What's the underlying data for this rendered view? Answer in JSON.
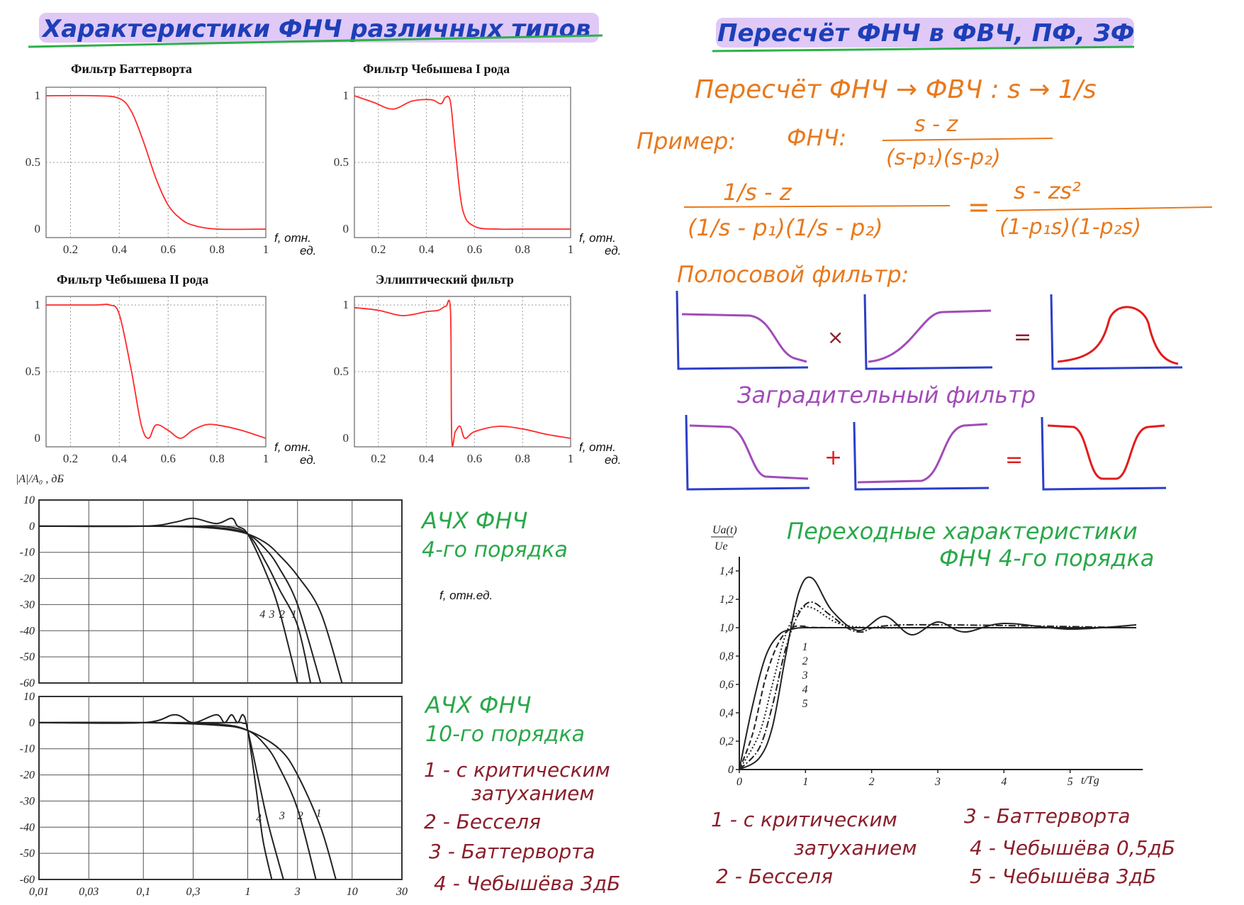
{
  "headers": {
    "left": "Характеристики ФНЧ различных типов",
    "right": "Пересчёт ФНЧ в ФВЧ, ПФ, ЗФ"
  },
  "small_plots": {
    "tick_labels_x": [
      "0.2",
      "0.4",
      "0.6",
      "0.8",
      "1"
    ],
    "tick_labels_y": [
      "1",
      "0.5",
      "0"
    ],
    "xlabel_line1": "f, отн.",
    "xlabel_line2": "ед.",
    "titles": [
      "Фильтр Баттерворта",
      "Фильтр Чебышева I рода",
      "Фильтр Чебышева II рода",
      "Эллиптический фильтр"
    ]
  },
  "afc": {
    "ylabel": "|A|/A₀ , дБ",
    "y_ticks": [
      "10",
      "0",
      "-10",
      "-20",
      "-30",
      "-40",
      "-50",
      "-60"
    ],
    "x_ticks": [
      "0,01",
      "0,03",
      "0,1",
      "0,3",
      "1",
      "3",
      "10",
      "30"
    ],
    "xlabel": "f, отн.ед.",
    "curve_labels": [
      "1",
      "2",
      "3",
      "4"
    ],
    "caption4_line1": "АЧХ ФНЧ",
    "caption4_line2": "4-го порядка",
    "caption10_line1": "АЧХ ФНЧ",
    "caption10_line2": "10-го порядка"
  },
  "legend_left": [
    "1 - с критическим",
    "затуханием",
    "2 - Бесселя",
    "3 - Баттерворта",
    "4 - Чебышёва 3дБ"
  ],
  "conversion": {
    "line1": "Пересчёт ФНЧ → ФВЧ :  s → 1/s",
    "example_label": "Пример:",
    "fnch_label": "ФНЧ:",
    "frac1_num": "s - z",
    "frac1_den": "(s-p₁)(s-p₂)",
    "frac2_num": "1/s - z",
    "frac2_den": "(1/s - p₁)(1/s - p₂)",
    "equals": "=",
    "frac3_num": "s - zs²",
    "frac3_den": "(1-p₁s)(1-p₂s)",
    "bandpass_label": "Полосовой фильтр:",
    "times": "×",
    "bandstop_label": "Заградительный фильтр",
    "plus": "+"
  },
  "transient": {
    "title_line1": "Переходные характеристики",
    "title_line2": "ФНЧ 4-го порядка",
    "ylabel_top": "Uа(t)",
    "ylabel_bottom": "Ue",
    "y_ticks": [
      "1,4",
      "1,2",
      "1,0",
      "0,8",
      "0,6",
      "0,4",
      "0,2",
      "0"
    ],
    "x_ticks": [
      "0",
      "1",
      "2",
      "3",
      "4",
      "5"
    ],
    "xlabel": "t/Tg",
    "curve_labels": [
      "1",
      "2",
      "3",
      "4",
      "5"
    ],
    "legend": [
      "1 - с критическим",
      "затуханием",
      "2 - Бесселя",
      "3 - Баттерворта",
      "4 - Чебышёва 0,5дБ",
      "5 - Чебышёва 3дБ"
    ]
  },
  "colors": {
    "red_curve": "#ff2a2a",
    "header_ink": "#1d3fb8",
    "header_highlight": "#c79cf0",
    "underline_green": "#2db04a",
    "orange_ink": "#e8791d",
    "green_ink": "#2aa84a",
    "maroon_ink": "#8a1f2c",
    "sketch_axis": "#2b3ec9",
    "sketch_purple": "#a24bb8",
    "sketch_red": "#e21c1c"
  },
  "chart_data": [
    {
      "type": "line",
      "title": "Фильтр Баттерворта",
      "xlabel": "f, отн. ед.",
      "xlim": [
        0.1,
        1
      ],
      "ylim": [
        0,
        1
      ],
      "grid": true,
      "series": [
        {
          "x": [
            0.1,
            0.3,
            0.4,
            0.45,
            0.5,
            0.55,
            0.6,
            0.65,
            0.7,
            0.8,
            1.0
          ],
          "y": [
            1,
            1,
            0.98,
            0.88,
            0.65,
            0.38,
            0.18,
            0.08,
            0.03,
            0.0,
            0.0
          ]
        }
      ]
    },
    {
      "type": "line",
      "title": "Фильтр Чебышева I рода",
      "xlabel": "f, отн. ед.",
      "xlim": [
        0.1,
        1
      ],
      "ylim": [
        0,
        1
      ],
      "grid": true,
      "series": [
        {
          "x": [
            0.1,
            0.18,
            0.26,
            0.34,
            0.42,
            0.46,
            0.48,
            0.5,
            0.52,
            0.55,
            0.6,
            0.7,
            0.8,
            1.0
          ],
          "y": [
            1,
            0.95,
            0.9,
            0.96,
            0.97,
            0.94,
            0.99,
            0.95,
            0.6,
            0.15,
            0.02,
            0.0,
            0.0,
            0.0
          ]
        }
      ]
    },
    {
      "type": "line",
      "title": "Фильтр Чебышева II рода",
      "xlabel": "f, отн. ед.",
      "xlim": [
        0.1,
        1
      ],
      "ylim": [
        0,
        1
      ],
      "grid": true,
      "series": [
        {
          "x": [
            0.1,
            0.3,
            0.36,
            0.4,
            0.45,
            0.49,
            0.52,
            0.55,
            0.6,
            0.65,
            0.7,
            0.75,
            0.8,
            0.9,
            1.0
          ],
          "y": [
            1,
            1,
            1,
            0.93,
            0.5,
            0.1,
            0.0,
            0.1,
            0.06,
            0.0,
            0.06,
            0.1,
            0.1,
            0.06,
            0.0
          ]
        }
      ]
    },
    {
      "type": "line",
      "title": "Эллиптический фильтр",
      "xlabel": "f, отн. ед.",
      "xlim": [
        0.1,
        1
      ],
      "ylim": [
        0,
        1
      ],
      "grid": true,
      "series": [
        {
          "x": [
            0.1,
            0.2,
            0.3,
            0.4,
            0.45,
            0.48,
            0.5,
            0.505,
            0.52,
            0.54,
            0.56,
            0.6,
            0.7,
            0.8,
            0.9,
            1.0
          ],
          "y": [
            0.98,
            0.96,
            0.92,
            0.95,
            0.96,
            0.99,
            0.95,
            0.0,
            0.05,
            0.09,
            0.0,
            0.05,
            0.09,
            0.07,
            0.03,
            0.0
          ]
        }
      ]
    },
    {
      "type": "line",
      "title": "АЧХ ФНЧ 4-го порядка",
      "xlabel": "f, отн.ед.",
      "ylabel": "|A|/A₀ , дБ",
      "x_scale": "log",
      "xlim": [
        0.01,
        30
      ],
      "ylim": [
        -60,
        10
      ],
      "grid": true,
      "series": [
        {
          "name": "1",
          "x": [
            0.01,
            0.1,
            0.3,
            0.6,
            1,
            1.5,
            2,
            3,
            5,
            8
          ],
          "y": [
            0,
            0,
            -0.3,
            -1.2,
            -3,
            -6.5,
            -11,
            -19,
            -33,
            -60
          ]
        },
        {
          "name": "2",
          "x": [
            0.01,
            0.1,
            0.3,
            0.6,
            1,
            1.5,
            2,
            3,
            5
          ],
          "y": [
            0,
            0,
            -0.2,
            -0.8,
            -3,
            -9,
            -16,
            -30,
            -60
          ]
        },
        {
          "name": "3",
          "x": [
            0.01,
            0.1,
            0.3,
            0.6,
            1,
            1.5,
            2,
            3,
            4
          ],
          "y": [
            0,
            0,
            0,
            -0.1,
            -3,
            -14,
            -24,
            -38,
            -60
          ]
        },
        {
          "name": "4",
          "x": [
            0.01,
            0.1,
            0.2,
            0.3,
            0.5,
            0.7,
            0.8,
            1,
            1.5,
            2,
            3
          ],
          "y": [
            0,
            0,
            1.5,
            3,
            1,
            3,
            0,
            -3,
            -18,
            -32,
            -60
          ]
        }
      ]
    },
    {
      "type": "line",
      "title": "АЧХ ФНЧ 10-го порядка",
      "xlabel": "f, отн.ед.",
      "x_scale": "log",
      "xlim": [
        0.01,
        30
      ],
      "ylim": [
        -60,
        10
      ],
      "grid": true,
      "series": [
        {
          "name": "1",
          "x": [
            0.01,
            0.1,
            0.5,
            1,
            2,
            3,
            5,
            7
          ],
          "y": [
            0,
            0,
            -1,
            -3,
            -10,
            -20,
            -40,
            -60
          ]
        },
        {
          "name": "2",
          "x": [
            0.01,
            0.1,
            0.5,
            1,
            1.5,
            2,
            3,
            4.5
          ],
          "y": [
            0,
            0,
            -0.5,
            -3,
            -9,
            -17,
            -33,
            -60
          ]
        },
        {
          "name": "3",
          "x": [
            0.01,
            0.5,
            0.9,
            1,
            1.3,
            1.6,
            2.2
          ],
          "y": [
            0,
            0,
            -0.2,
            -3,
            -24,
            -40,
            -60
          ]
        },
        {
          "name": "4",
          "x": [
            0.01,
            0.1,
            0.2,
            0.3,
            0.5,
            0.6,
            0.7,
            0.8,
            0.9,
            1,
            1.2,
            1.4,
            1.7
          ],
          "y": [
            0,
            0,
            3,
            0,
            3,
            0,
            3,
            0,
            3,
            -3,
            -25,
            -45,
            -60
          ]
        }
      ]
    },
    {
      "type": "line",
      "title": "Переходные характеристики ФНЧ 4-го порядка",
      "xlabel": "t/Tg",
      "ylabel": "Uа(t)/Ue",
      "xlim": [
        0,
        6
      ],
      "ylim": [
        0,
        1.5
      ],
      "grid": false,
      "series": [
        {
          "name": "1",
          "x": [
            0,
            0.2,
            0.4,
            0.6,
            0.8,
            1.0,
            1.5,
            6
          ],
          "y": [
            0,
            0.45,
            0.8,
            0.95,
            0.99,
            1.0,
            1.0,
            1.0
          ]
        },
        {
          "name": "2",
          "x": [
            0,
            0.2,
            0.4,
            0.6,
            0.8,
            1.0,
            1.5,
            6
          ],
          "y": [
            0,
            0.25,
            0.65,
            0.9,
            1.0,
            1.01,
            1.0,
            1.0
          ]
        },
        {
          "name": "3",
          "x": [
            0,
            0.3,
            0.5,
            0.7,
            0.9,
            1.1,
            1.5,
            2,
            3,
            6
          ],
          "y": [
            0,
            0.25,
            0.6,
            0.95,
            1.12,
            1.14,
            1.03,
            1.0,
            1.0,
            1.0
          ]
        },
        {
          "name": "4",
          "x": [
            0,
            0.3,
            0.5,
            0.7,
            0.9,
            1.1,
            1.4,
            1.8,
            2.5,
            6
          ],
          "y": [
            0,
            0.15,
            0.45,
            0.85,
            1.1,
            1.18,
            1.08,
            0.97,
            1.02,
            1.0
          ]
        },
        {
          "name": "5",
          "x": [
            0,
            0.3,
            0.5,
            0.7,
            0.9,
            1.1,
            1.4,
            1.8,
            2.2,
            2.6,
            3.0,
            3.4,
            4.0,
            5.0,
            6.0
          ],
          "y": [
            0,
            0.08,
            0.3,
            0.8,
            1.25,
            1.35,
            1.12,
            0.98,
            1.08,
            0.95,
            1.04,
            0.97,
            1.03,
            0.99,
            1.02
          ]
        }
      ]
    }
  ]
}
